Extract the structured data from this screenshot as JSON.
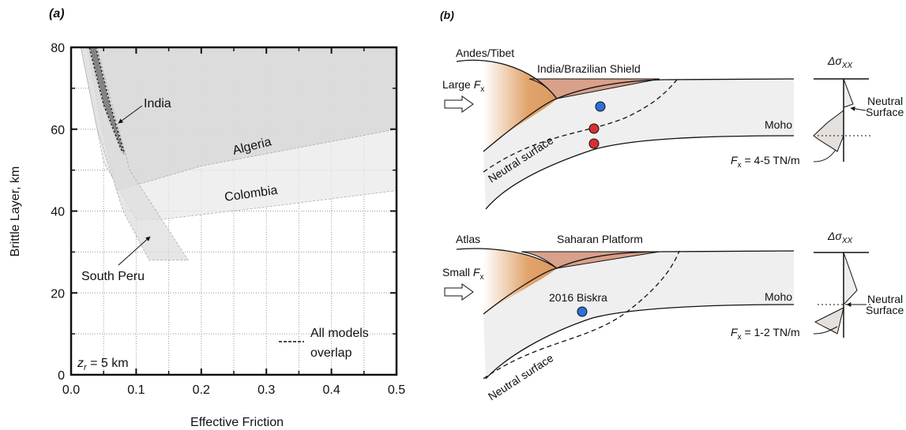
{
  "chart_data": {
    "type": "region",
    "panel_label": "(a)",
    "x_label": "Effective Friction",
    "y_label": "Brittle Layer, km",
    "xlim": [
      0,
      0.5
    ],
    "ylim": [
      0,
      80
    ],
    "xticks": [
      {
        "value": 0,
        "label": "0.0"
      },
      0.1,
      0.2,
      0.3,
      0.4,
      0.5
    ],
    "yticks": [
      0,
      20,
      40,
      60,
      80
    ],
    "minor_xticks": [
      0.05,
      0.15,
      0.25,
      0.35,
      0.45
    ],
    "minor_yticks": [
      10,
      30,
      50,
      70
    ],
    "grid": true,
    "series": [
      {
        "name": "Colombia",
        "color": "#e9e9e9",
        "x": [
          0.015,
          0.5,
          0.5,
          0.3,
          0.14,
          0.1,
          0.05
        ],
        "values": [
          80,
          80,
          45,
          41,
          38,
          38,
          52
        ]
      },
      {
        "name": "Algeria",
        "color": "#d6d6d6",
        "x": [
          0.025,
          0.5,
          0.5,
          0.2,
          0.07,
          0.045
        ],
        "values": [
          80,
          80,
          60,
          51,
          45,
          62
        ]
      },
      {
        "name": "South Peru",
        "color": "#dedede",
        "x": [
          0.015,
          0.04,
          0.09,
          0.18,
          0.12,
          0.08,
          0.04
        ],
        "values": [
          80,
          80,
          50,
          28,
          28,
          40,
          60
        ]
      },
      {
        "name": "India",
        "color": "#7a7a7a",
        "x": [
          0.028,
          0.038,
          0.06,
          0.082,
          0.077,
          0.05
        ],
        "values": [
          80,
          80,
          66,
          54,
          55,
          66
        ]
      }
    ],
    "overlap_label": [
      "All models",
      "overlap"
    ],
    "zr_label": [
      "z",
      "r",
      " = 5 km"
    ]
  },
  "diagram": {
    "panel_label": "(b)",
    "top": {
      "mountain": "Andes/Tibet",
      "shield": "India/Brazilian Shield",
      "force": [
        "Large ",
        "F",
        "x"
      ],
      "moho": "Moho",
      "neutral": "Neutral surface",
      "stress": [
        "Δσ",
        "XX"
      ],
      "stress_neutral": [
        "Neutral",
        "Surface"
      ],
      "force_value": [
        "F",
        "x",
        " = 4-5 TN/m"
      ]
    },
    "bottom": {
      "mountain": "Atlas",
      "shield": "Saharan Platform",
      "force": [
        "Small ",
        "F",
        "x"
      ],
      "event": "2016 Biskra",
      "moho": "Moho",
      "neutral": "Neutral surface",
      "stress": [
        "Δσ",
        "XX"
      ],
      "stress_neutral": [
        "Neutral",
        "Surface"
      ],
      "force_value": [
        "F",
        "x",
        " = 1-2 TN/m"
      ]
    }
  }
}
